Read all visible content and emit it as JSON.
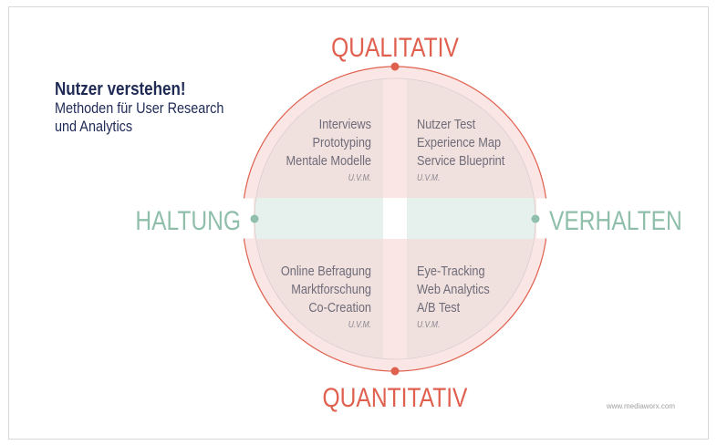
{
  "title": "Nutzer verstehen!",
  "subtitle_line1": "Methoden für User Research",
  "subtitle_line2": "und Analytics",
  "axes": {
    "top": "QUALITATIV",
    "bottom": "QUANTITATIV",
    "left": "HALTUNG",
    "right": "VERHALTEN"
  },
  "quadrants": {
    "top_left": {
      "items": [
        "Interviews",
        "Prototyping",
        "Mentale Modelle"
      ],
      "more": "U.V.M."
    },
    "top_right": {
      "items": [
        "Nutzer Test",
        "Experience Map",
        "Service Blueprint"
      ],
      "more": "U.V.M."
    },
    "bottom_left": {
      "items": [
        "Online Befragung",
        "Marktforschung",
        "Co-Creation"
      ],
      "more": "U.V.M."
    },
    "bottom_right": {
      "items": [
        "Eye-Tracking",
        "Web Analytics",
        "A/B Test"
      ],
      "more": "U.V.M."
    }
  },
  "footer": "www.mediaworx.com",
  "colors": {
    "qualitative_axis": "#e0604f",
    "attitude_axis": "#8fbfab",
    "title": "#1f2a55",
    "quadrant_fill": "#f0e1df",
    "ring_fill": "#fae6e4",
    "band_fill": "#e6f0ec"
  }
}
